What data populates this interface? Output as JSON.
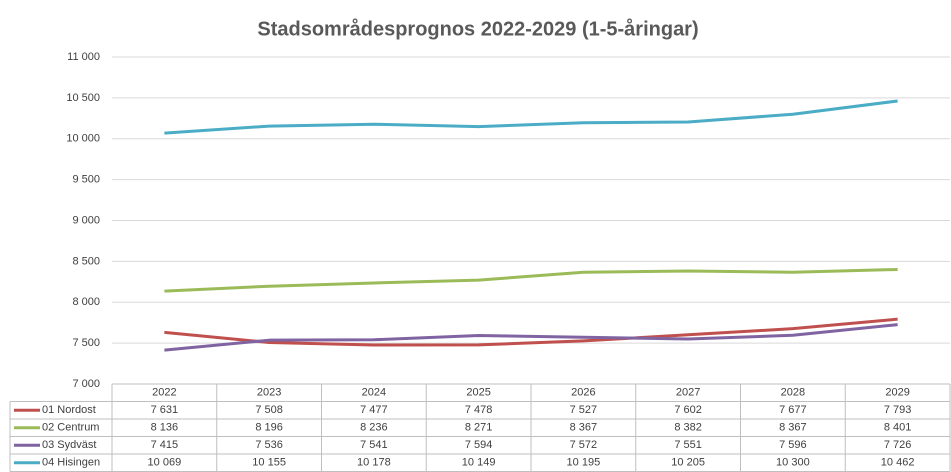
{
  "chart_data": {
    "type": "line",
    "title": "Stadsområdesprognos 2022-2029 (1-5-åringar)",
    "categories": [
      "2022",
      "2023",
      "2024",
      "2025",
      "2026",
      "2027",
      "2028",
      "2029"
    ],
    "ylim": [
      7000,
      11000
    ],
    "yticks": [
      {
        "value": 7000,
        "label": "7 000"
      },
      {
        "value": 7500,
        "label": "7 500"
      },
      {
        "value": 8000,
        "label": "8 000"
      },
      {
        "value": 8500,
        "label": "8 500"
      },
      {
        "value": 9000,
        "label": "9 000"
      },
      {
        "value": 9500,
        "label": "9 500"
      },
      {
        "value": 10000,
        "label": "10 000"
      },
      {
        "value": 10500,
        "label": "10 500"
      },
      {
        "value": 11000,
        "label": "11 000"
      }
    ],
    "grid": true,
    "series": [
      {
        "name": "01 Nordost",
        "color": "#c0504d",
        "values": [
          7631,
          7508,
          7477,
          7478,
          7527,
          7602,
          7677,
          7793
        ],
        "value_labels": [
          "7 631",
          "7 508",
          "7 477",
          "7 478",
          "7 527",
          "7 602",
          "7 677",
          "7 793"
        ]
      },
      {
        "name": "02 Centrum",
        "color": "#9bbb59",
        "values": [
          8136,
          8196,
          8236,
          8271,
          8367,
          8382,
          8367,
          8401
        ],
        "value_labels": [
          "8 136",
          "8 196",
          "8 236",
          "8 271",
          "8 367",
          "8 382",
          "8 367",
          "8 401"
        ]
      },
      {
        "name": "03 Sydväst",
        "color": "#8064a2",
        "values": [
          7415,
          7536,
          7541,
          7594,
          7572,
          7551,
          7596,
          7726
        ],
        "value_labels": [
          "7 415",
          "7 536",
          "7 541",
          "7 594",
          "7 572",
          "7 551",
          "7 596",
          "7 726"
        ]
      },
      {
        "name": "04 Hisingen",
        "color": "#4bacc6",
        "values": [
          10069,
          10155,
          10178,
          10149,
          10195,
          10205,
          10300,
          10462
        ],
        "value_labels": [
          "10 069",
          "10 155",
          "10 178",
          "10 149",
          "10 195",
          "10 205",
          "10 300",
          "10 462"
        ]
      }
    ]
  }
}
